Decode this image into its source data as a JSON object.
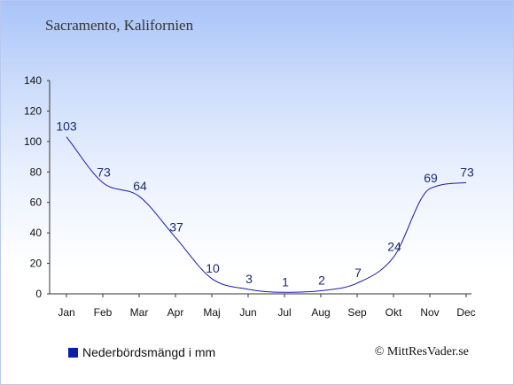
{
  "title": "Sacramento, Kalifornien",
  "legend_label": "Nederbördsmängd i mm",
  "copyright": "© MittResVader.se",
  "colors": {
    "series": "#1a1aa6",
    "legend_swatch": "#0a1eaa"
  },
  "chart_data": {
    "type": "line",
    "title": "Sacramento, Kalifornien",
    "xlabel": "",
    "ylabel": "",
    "categories": [
      "Jan",
      "Feb",
      "Mar",
      "Apr",
      "Maj",
      "Jun",
      "Jul",
      "Aug",
      "Sep",
      "Okt",
      "Nov",
      "Dec"
    ],
    "series": [
      {
        "name": "Nederbördsmängd i mm",
        "values": [
          103,
          73,
          64,
          37,
          10,
          3,
          1,
          2,
          7,
          24,
          69,
          73
        ]
      }
    ],
    "ylim": [
      0,
      140
    ],
    "yticks": [
      0,
      20,
      40,
      60,
      80,
      100,
      120,
      140
    ],
    "grid": false,
    "legend": "bottom-left"
  }
}
